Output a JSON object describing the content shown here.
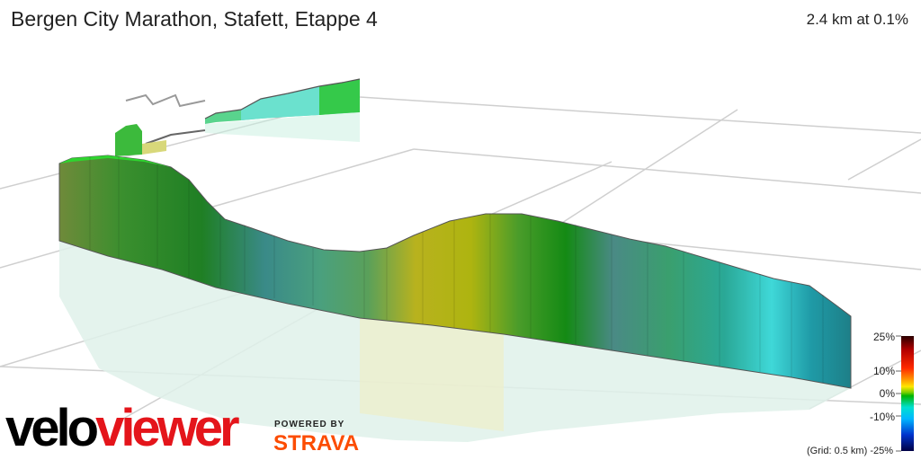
{
  "header": {
    "title": "Bergen City Marathon, Stafett, Etappe 4",
    "summary": "2.4 km at 0.1%"
  },
  "legend": {
    "labels": [
      "25%",
      "10%",
      "0%",
      "-10%",
      "-25%"
    ],
    "grid_note": "(Grid: 0.5 km)"
  },
  "branding": {
    "velo": "velo",
    "viewer": "viewer",
    "powered_by": "POWERED BY",
    "strava": "STRAVA"
  },
  "colors": {
    "brand_red": "#e4151b",
    "strava_orange": "#fc4c02",
    "ridge_outline": "#555555"
  }
}
